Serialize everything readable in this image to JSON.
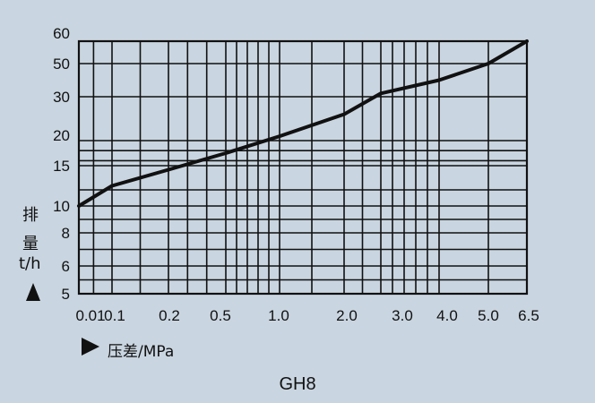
{
  "chart_data": {
    "type": "line",
    "title": "GH8",
    "xlabel": "压差/MPa",
    "ylabel": [
      "排",
      "量",
      "t/h"
    ],
    "x_ticks": [
      "0.01",
      "0.1",
      "0.2",
      "0.5",
      "1.0",
      "2.0",
      "3.0",
      "4.0",
      "5.0",
      "6.5"
    ],
    "y_ticks": [
      "5",
      "6",
      "8",
      "10",
      "15",
      "20",
      "30",
      "50",
      "60"
    ],
    "xlim": [
      0.01,
      6.5
    ],
    "ylim": [
      5,
      60
    ],
    "grid": true,
    "series": [
      {
        "x": [
          0.01,
          0.1,
          0.2,
          0.5,
          1.0,
          2.0,
          3.0,
          4.0,
          5.0,
          6.5
        ],
        "y": [
          10,
          12.5,
          14.5,
          17.5,
          21,
          26,
          32,
          40,
          50,
          60
        ]
      }
    ]
  }
}
